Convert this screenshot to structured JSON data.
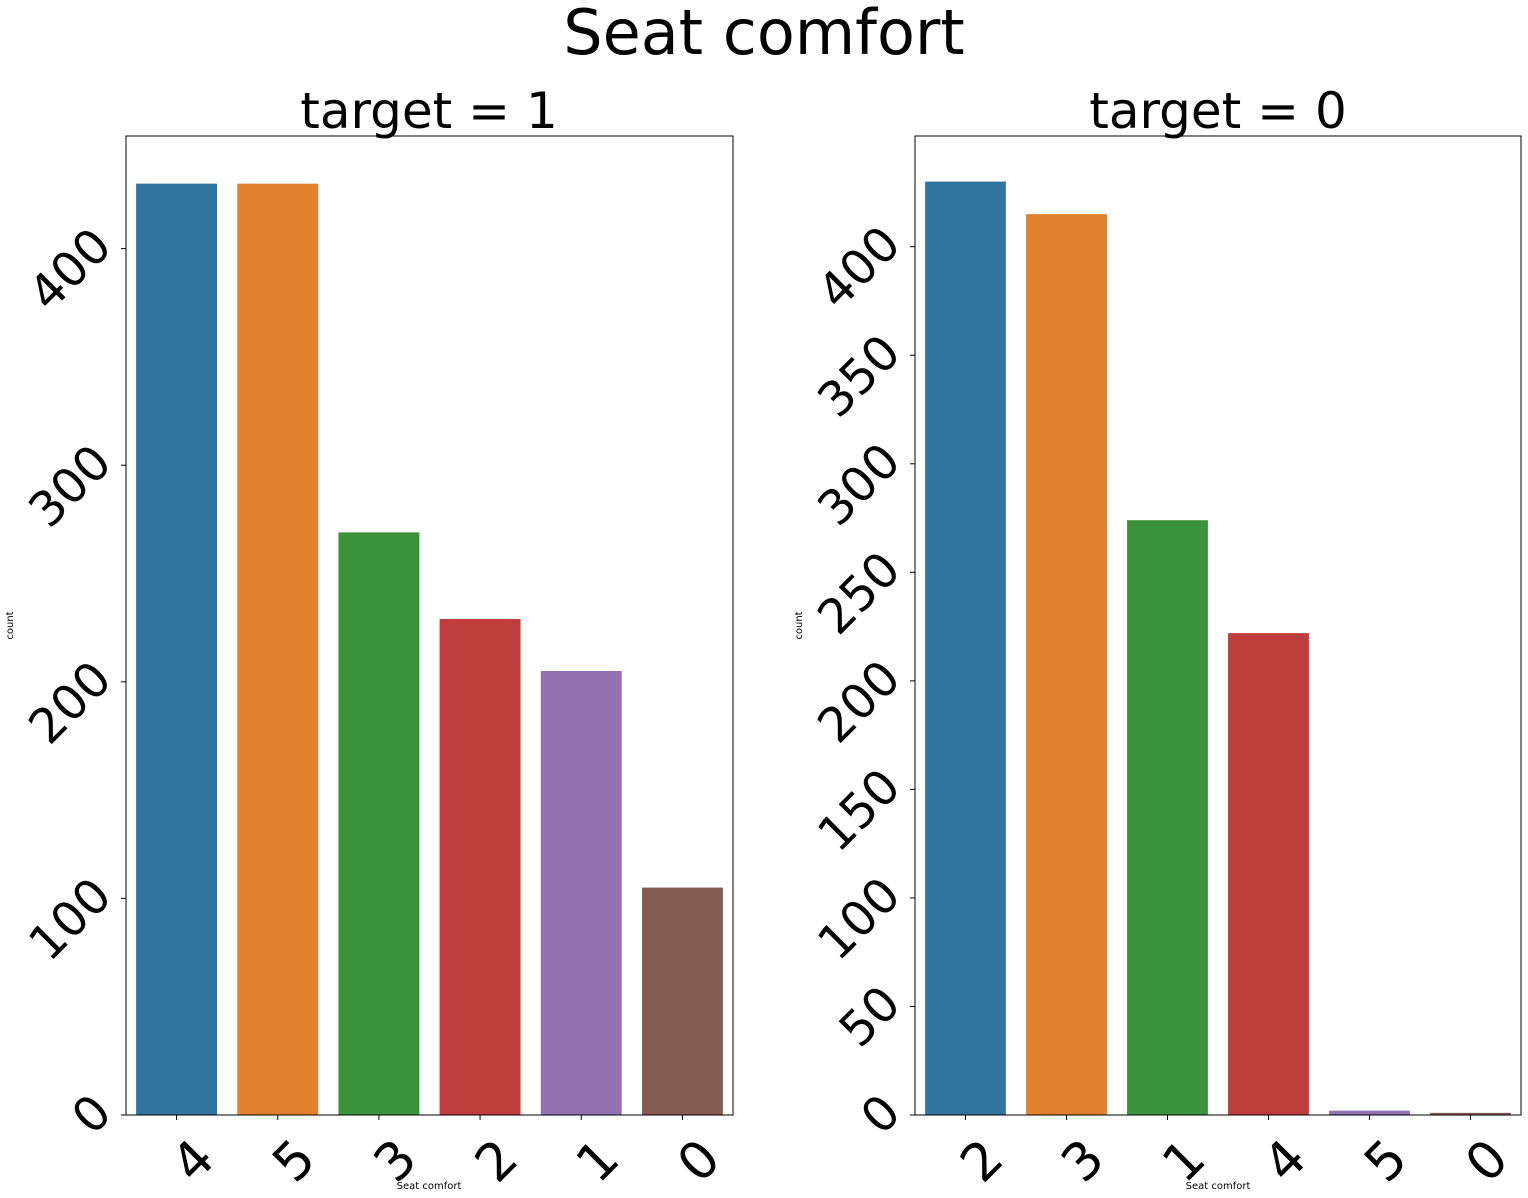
{
  "figure": {
    "suptitle": "Seat comfort"
  },
  "chart_data": [
    {
      "type": "bar",
      "title": "target = 1",
      "xlabel": "Seat comfort",
      "ylabel": "count",
      "categories": [
        "4",
        "5",
        "3",
        "2",
        "1",
        "0"
      ],
      "values": [
        430,
        430,
        269,
        229,
        205,
        105
      ],
      "colors": [
        "#3274a1",
        "#e1812c",
        "#3a923a",
        "#c03d3e",
        "#9372b2",
        "#845b53"
      ],
      "ylim": [
        0,
        452
      ],
      "yticks": [
        0,
        100,
        200,
        300,
        400
      ],
      "tick_rotation": 45,
      "grid": false,
      "legend": "none"
    },
    {
      "type": "bar",
      "title": "target = 0",
      "xlabel": "Seat comfort",
      "ylabel": "count",
      "categories": [
        "2",
        "3",
        "1",
        "4",
        "5",
        "0"
      ],
      "values": [
        430,
        415,
        274,
        222,
        2,
        1
      ],
      "colors": [
        "#3274a1",
        "#e1812c",
        "#3a923a",
        "#c03d3e",
        "#9372b2",
        "#845b53"
      ],
      "ylim": [
        0,
        451
      ],
      "yticks": [
        0,
        50,
        100,
        150,
        200,
        250,
        300,
        350,
        400
      ],
      "tick_rotation": 45,
      "grid": false,
      "legend": "none"
    }
  ]
}
